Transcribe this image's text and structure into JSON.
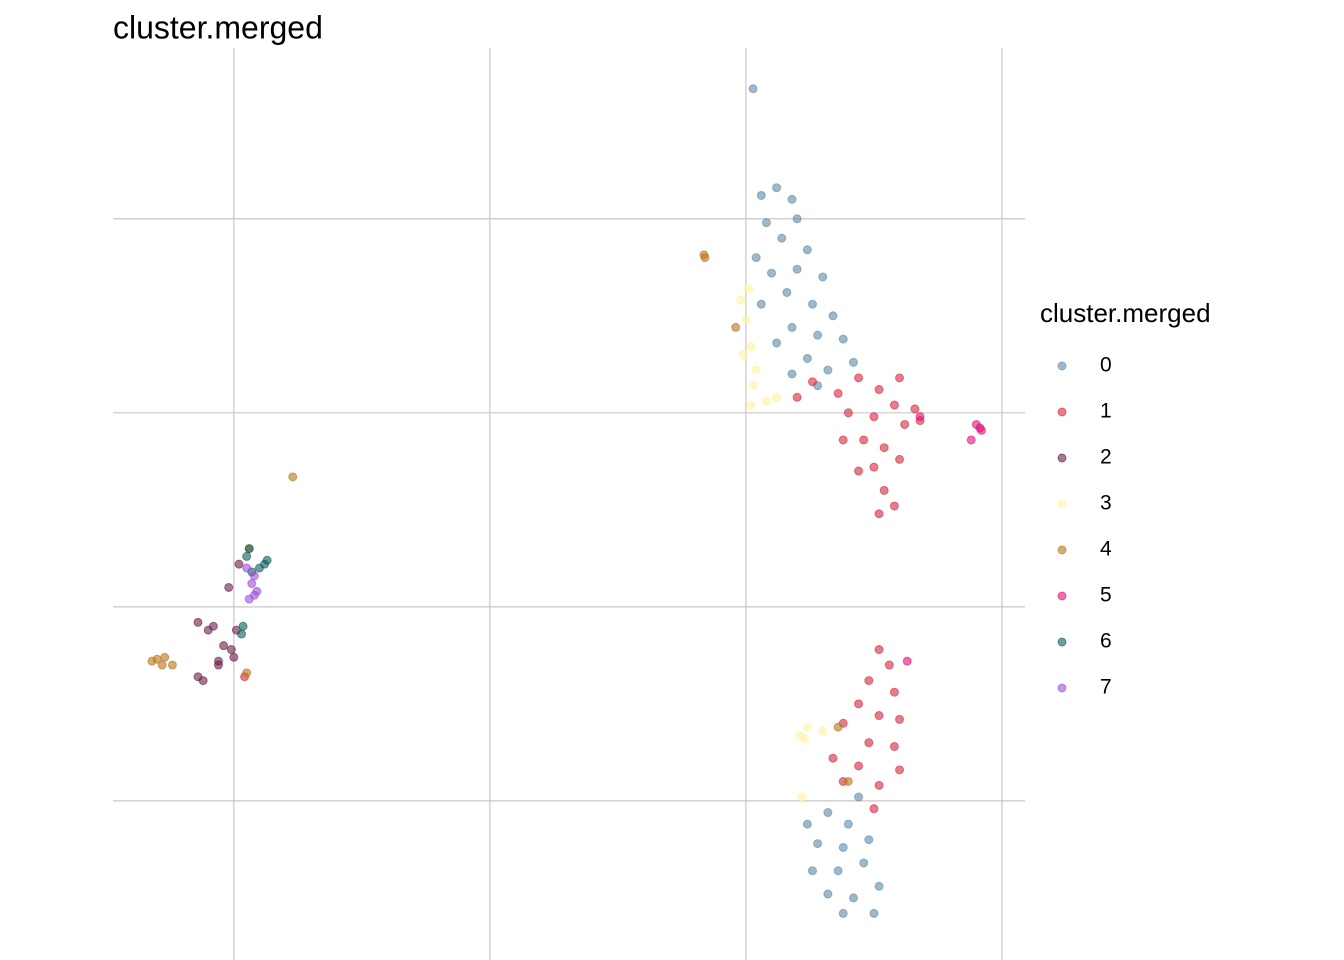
{
  "chart_data": {
    "type": "scatter",
    "title": "cluster.merged",
    "legend_title": "cluster.merged",
    "xlim": [
      -12.36,
      5.45
    ],
    "ylim": [
      -9.1,
      14.4
    ],
    "xticks": [
      -10,
      -5,
      0,
      5
    ],
    "yticks": [
      -5,
      0,
      5,
      10
    ],
    "grid": true,
    "tick_labels": false,
    "legend": "right",
    "opacity": 0.6,
    "series": [
      {
        "name": "0",
        "color": "#5b8ba8",
        "x": [
          0.3,
          0.6,
          0.9,
          1.0,
          0.4,
          0.7,
          1.2,
          0.2,
          0.5,
          1.0,
          1.5,
          0.8,
          1.3,
          0.3,
          1.7,
          0.9,
          1.4,
          0.6,
          1.9,
          1.2,
          1.6,
          0.9,
          2.1,
          1.4,
          0.14,
          1.2,
          1.6,
          2.0,
          1.4,
          1.9,
          2.4,
          1.3,
          1.8,
          2.3,
          2.6,
          1.6,
          2.1,
          2.5,
          1.9,
          2.2
        ],
        "y": [
          10.6,
          10.8,
          10.5,
          10.0,
          9.9,
          9.5,
          9.2,
          9.0,
          8.6,
          8.7,
          8.5,
          8.1,
          7.8,
          7.8,
          7.5,
          7.2,
          7.0,
          6.8,
          6.9,
          6.4,
          6.1,
          6.0,
          6.3,
          5.7,
          13.35,
          -5.6,
          -5.3,
          -5.6,
          -6.1,
          -6.2,
          -6.0,
          -6.8,
          -6.8,
          -6.6,
          -7.2,
          -7.4,
          -7.5,
          -7.9,
          -7.9,
          -4.9
        ]
      },
      {
        "name": "1",
        "color": "#d7263d",
        "x": [
          1.3,
          1.8,
          2.2,
          2.6,
          3.0,
          2.0,
          2.5,
          2.9,
          3.1,
          2.3,
          2.7,
          1.9,
          2.5,
          3.0,
          2.2,
          2.7,
          2.9,
          2.6,
          3.3,
          3.4,
          1.0,
          -9.79,
          2.6,
          2.8,
          2.4,
          2.9,
          2.2,
          2.6,
          3.0,
          1.9,
          2.4,
          2.9,
          1.7,
          2.2,
          3.0,
          2.6,
          1.9,
          2.5
        ],
        "y": [
          5.8,
          5.5,
          5.9,
          5.6,
          5.9,
          5.0,
          4.9,
          5.2,
          4.7,
          4.3,
          4.1,
          4.3,
          3.6,
          3.8,
          3.5,
          3.0,
          2.6,
          2.4,
          5.1,
          4.8,
          5.4,
          -1.8,
          -1.1,
          -1.5,
          -1.9,
          -2.2,
          -2.5,
          -2.8,
          -2.9,
          -3.0,
          -3.5,
          -3.6,
          -3.9,
          -4.1,
          -4.2,
          -4.6,
          -4.5,
          -5.2
        ]
      },
      {
        "name": "2",
        "color": "#6b1e4a",
        "x": [
          -10.7,
          -10.5,
          -10.4,
          -10.2,
          -9.95,
          -10.05,
          -10.3,
          -10.0,
          -10.6,
          -10.7,
          -10.1,
          -9.9,
          -10.3
        ],
        "y": [
          -0.4,
          -0.6,
          -0.5,
          -1.0,
          -0.6,
          -1.1,
          -1.5,
          -1.3,
          -1.9,
          -1.8,
          0.5,
          1.1,
          -1.4
        ]
      },
      {
        "name": "3",
        "color": "#fff3a0",
        "x": [
          0.05,
          0.0,
          -0.1,
          0.1,
          -0.05,
          0.2,
          0.15,
          0.4,
          0.1,
          0.6,
          1.05,
          1.15,
          1.2,
          1.1,
          1.5
        ],
        "y": [
          8.2,
          7.4,
          7.9,
          6.7,
          6.5,
          6.1,
          5.7,
          5.3,
          5.2,
          5.4,
          -3.3,
          -3.4,
          -3.1,
          -4.9,
          -3.2
        ]
      },
      {
        "name": "4",
        "color": "#b8741a",
        "x": [
          -0.82,
          -0.8,
          -8.85,
          -11.5,
          -11.6,
          -11.35,
          -11.2,
          -11.4,
          -9.75,
          -9.7,
          2.0,
          1.8,
          -0.2
        ],
        "y": [
          9.07,
          9.0,
          3.35,
          -1.35,
          -1.4,
          -1.3,
          -1.5,
          -1.5,
          -1.7,
          1.5,
          -4.5,
          -3.1,
          7.2
        ]
      },
      {
        "name": "5",
        "color": "#e0107a",
        "x": [
          4.57,
          4.6,
          4.5,
          4.4,
          3.15,
          3.4
        ],
        "y": [
          4.61,
          4.55,
          4.7,
          4.3,
          -1.4,
          4.9
        ]
      },
      {
        "name": "6",
        "color": "#0b5e5e",
        "x": [
          -9.7,
          -9.75,
          -9.4,
          -9.35,
          -9.5,
          -9.82,
          -9.85,
          -9.65
        ],
        "y": [
          1.5,
          1.3,
          1.1,
          1.2,
          1.0,
          -0.5,
          -0.7,
          0.9
        ]
      },
      {
        "name": "7",
        "color": "#9b4fdc",
        "x": [
          -9.6,
          -9.65,
          -9.55,
          -9.7,
          -9.6,
          -9.75
        ],
        "y": [
          0.8,
          0.6,
          0.4,
          0.2,
          0.3,
          1.0
        ]
      }
    ]
  }
}
